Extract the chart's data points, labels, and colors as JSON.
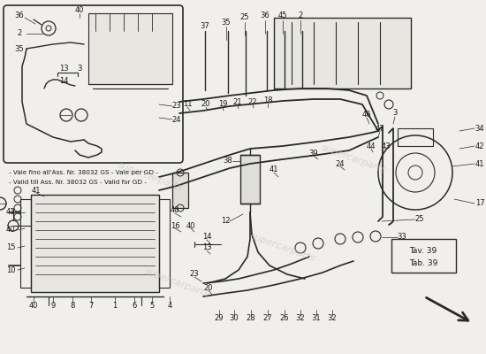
{
  "bg_color": "#f0efeb",
  "line_color": "#2a2a2a",
  "label_color": "#1a1a1a",
  "watermark_color": "#c8c4bc",
  "note_lines": [
    "- Vale fino all'Ass. Nr. 38032 GS - Vale per GD -",
    "- Valid till Ass. Nr. 38032 GS - Valid for GD -"
  ],
  "tab_lines": [
    "Tav. 39",
    "Tab. 39"
  ],
  "figsize": [
    5.5,
    4.0
  ],
  "dpi": 100
}
